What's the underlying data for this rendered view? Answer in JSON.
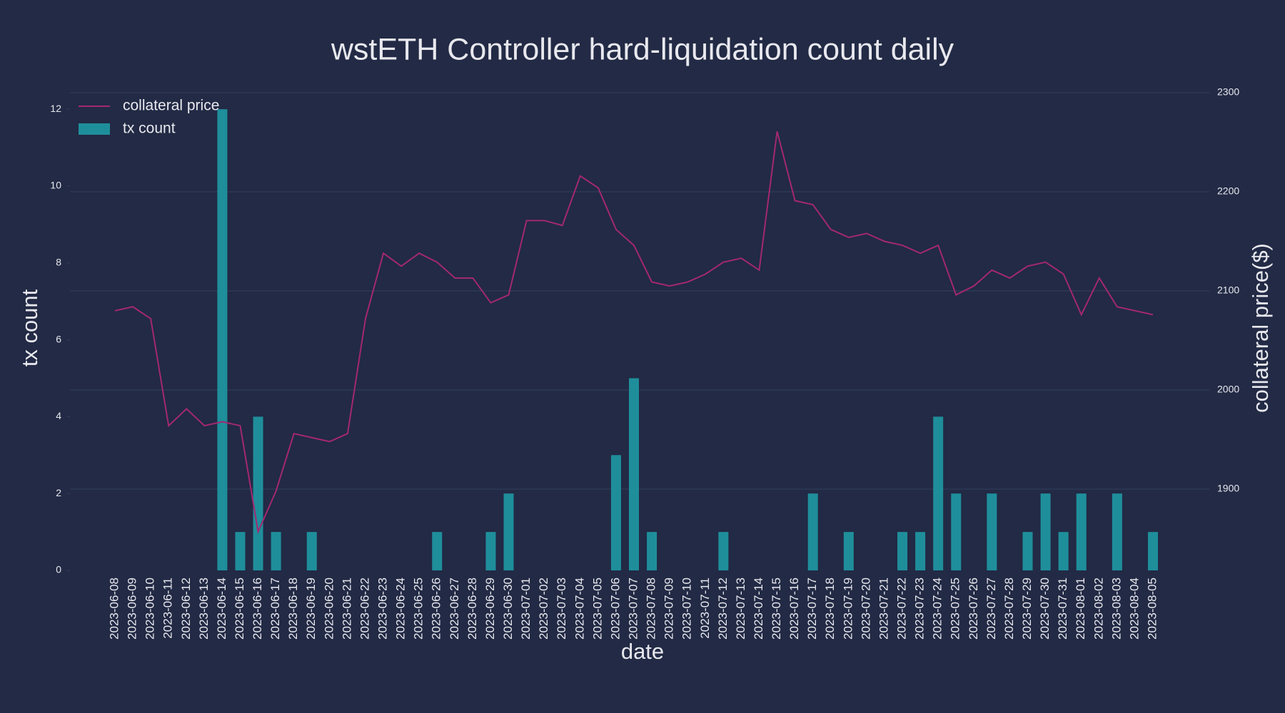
{
  "chart_data": {
    "type": "combo",
    "title": "wstETH Controller hard-liquidation count daily",
    "x_label": "date",
    "y_label": "tx count",
    "y2_label": "collateral price($)",
    "categories": [
      "2023-06-08",
      "2023-06-09",
      "2023-06-10",
      "2023-06-11",
      "2023-06-12",
      "2023-06-13",
      "2023-06-14",
      "2023-06-15",
      "2023-06-16",
      "2023-06-17",
      "2023-06-18",
      "2023-06-19",
      "2023-06-20",
      "2023-06-21",
      "2023-06-22",
      "2023-06-23",
      "2023-06-24",
      "2023-06-25",
      "2023-06-26",
      "2023-06-27",
      "2023-06-28",
      "2023-06-29",
      "2023-06-30",
      "2023-07-01",
      "2023-07-02",
      "2023-07-03",
      "2023-07-04",
      "2023-07-05",
      "2023-07-06",
      "2023-07-07",
      "2023-07-08",
      "2023-07-09",
      "2023-07-10",
      "2023-07-11",
      "2023-07-12",
      "2023-07-13",
      "2023-07-14",
      "2023-07-15",
      "2023-07-16",
      "2023-07-17",
      "2023-07-18",
      "2023-07-19",
      "2023-07-20",
      "2023-07-21",
      "2023-07-22",
      "2023-07-23",
      "2023-07-24",
      "2023-07-25",
      "2023-07-26",
      "2023-07-27",
      "2023-07-28",
      "2023-07-29",
      "2023-07-30",
      "2023-07-31",
      "2023-08-01",
      "2023-08-02",
      "2023-08-03",
      "2023-08-04",
      "2023-08-05"
    ],
    "series": [
      {
        "name": "tx count",
        "type": "bar",
        "color": "#1f8e9b",
        "values": [
          0,
          0,
          0,
          0,
          0,
          0,
          12,
          1,
          4,
          1,
          0,
          1,
          0,
          0,
          0,
          0,
          0,
          0,
          1,
          0,
          0,
          1,
          2,
          0,
          0,
          0,
          0,
          0,
          3,
          5,
          1,
          0,
          0,
          0,
          1,
          0,
          0,
          0,
          0,
          2,
          0,
          1,
          0,
          0,
          1,
          1,
          4,
          2,
          0,
          2,
          0,
          1,
          2,
          1,
          2,
          0,
          2,
          0,
          1
        ]
      },
      {
        "name": "collateral price",
        "type": "line",
        "color": "#a3286f",
        "axis": "y2",
        "values": [
          2080,
          2084,
          2072,
          1964,
          1981,
          1964,
          1968,
          1964,
          1857,
          1898,
          1956,
          1952,
          1948,
          1956,
          2072,
          2138,
          2125,
          2138,
          2129,
          2113,
          2113,
          2088,
          2096,
          2171,
          2171,
          2166,
          2216,
          2204,
          2162,
          2146,
          2109,
          2105,
          2109,
          2117,
          2129,
          2133,
          2121,
          2261,
          2191,
          2187,
          2162,
          2154,
          2158,
          2150,
          2146,
          2138,
          2146,
          2096,
          2105,
          2121,
          2113,
          2125,
          2129,
          2117,
          2076,
          2113,
          2084,
          2080,
          2076
        ]
      }
    ],
    "ylim": [
      0,
      12.43
    ],
    "yticks": [
      0,
      2,
      4,
      6,
      8,
      10,
      12
    ],
    "y2lim": [
      1818,
      2300
    ],
    "y2ticks": [
      1900,
      2000,
      2100,
      2200,
      2300
    ],
    "grid": "y2",
    "legend": "upper left"
  }
}
